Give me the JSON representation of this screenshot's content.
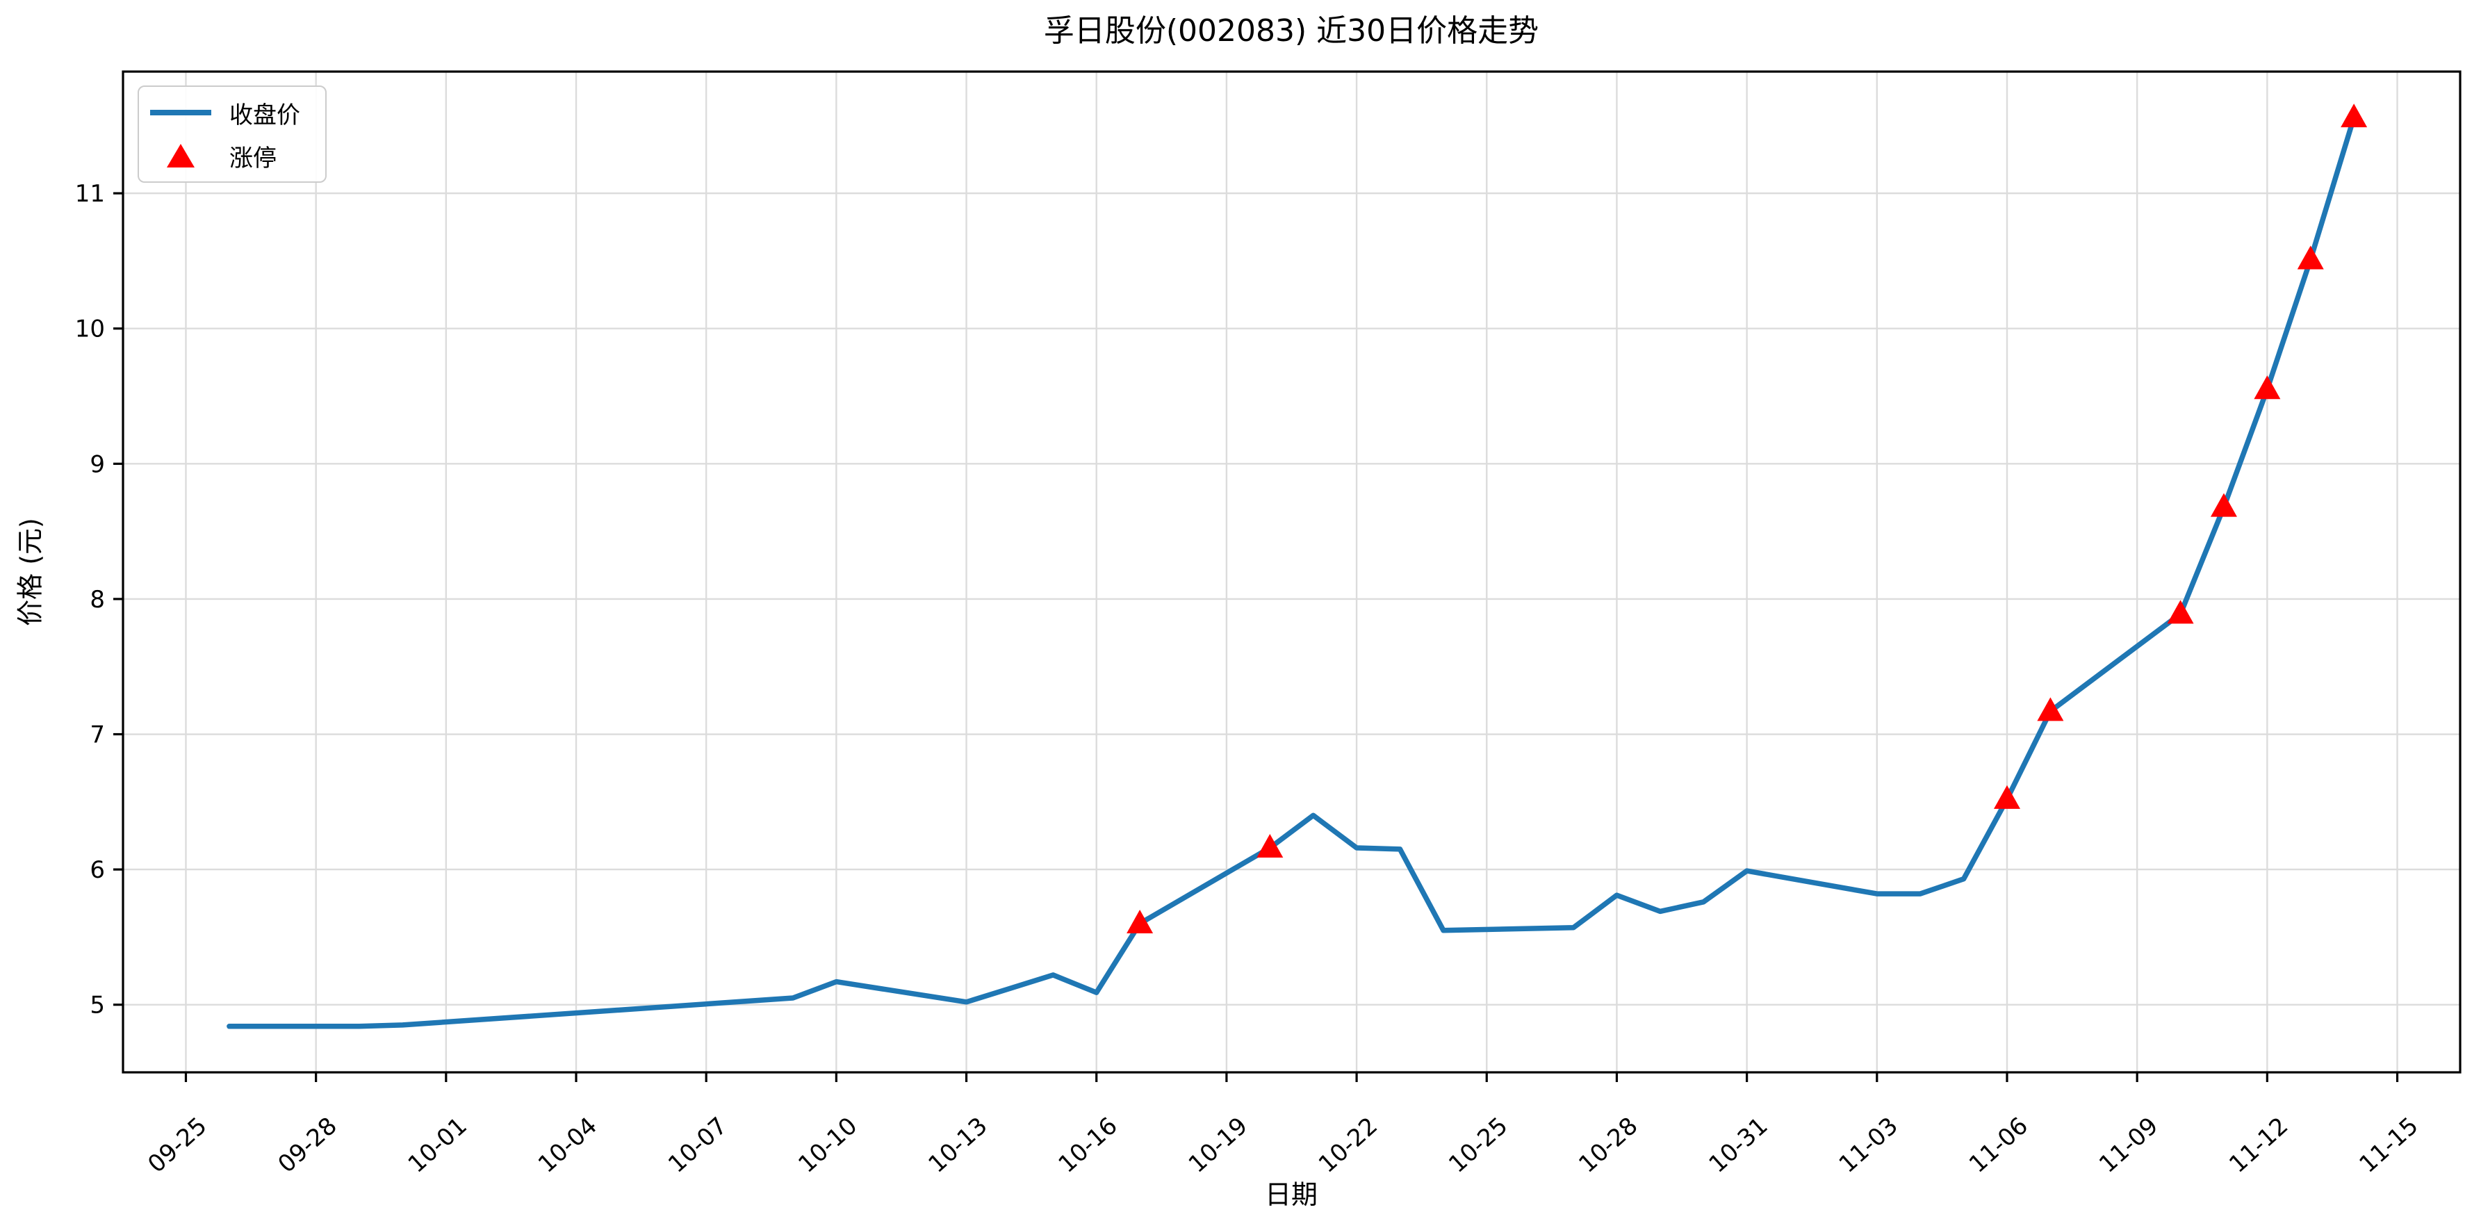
{
  "chart_data": {
    "type": "line",
    "title": "孚日股份(002083) 近30日价格走势",
    "xlabel": "日期",
    "ylabel": "价格 (元)",
    "x": [
      "09-26",
      "09-29",
      "09-30",
      "10-09",
      "10-10",
      "10-13",
      "10-14",
      "10-15",
      "10-16",
      "10-17",
      "10-20",
      "10-21",
      "10-22",
      "10-23",
      "10-24",
      "10-27",
      "10-28",
      "10-29",
      "10-30",
      "10-31",
      "11-03",
      "11-04",
      "11-05",
      "11-06",
      "11-07",
      "11-10",
      "11-11",
      "11-12",
      "11-13",
      "11-14"
    ],
    "series": [
      {
        "name": "收盘价",
        "type": "line",
        "color": "#1f77b4",
        "values": [
          4.84,
          4.84,
          4.85,
          5.05,
          5.17,
          5.02,
          5.12,
          5.22,
          5.09,
          5.6,
          6.16,
          6.4,
          6.16,
          6.15,
          5.55,
          5.57,
          5.81,
          5.69,
          5.76,
          5.99,
          5.82,
          5.82,
          5.93,
          6.52,
          7.17,
          7.89,
          8.68,
          9.55,
          10.51,
          11.56
        ]
      },
      {
        "name": "涨停",
        "type": "scatter",
        "marker": "triangle-up",
        "color": "#ff0000",
        "dates": [
          "10-17",
          "10-20",
          "11-06",
          "11-07",
          "11-10",
          "11-11",
          "11-12",
          "11-13",
          "11-14"
        ],
        "values": [
          5.6,
          6.16,
          6.52,
          7.17,
          7.89,
          8.68,
          9.55,
          10.51,
          11.56
        ]
      }
    ],
    "x_ticks": [
      "09-25",
      "09-28",
      "10-01",
      "10-04",
      "10-07",
      "10-10",
      "10-13",
      "10-16",
      "10-19",
      "10-22",
      "10-25",
      "10-28",
      "10-31",
      "11-03",
      "11-06",
      "11-09",
      "11-12",
      "11-15"
    ],
    "y_ticks": [
      5,
      6,
      7,
      8,
      9,
      10,
      11
    ],
    "ylim": [
      4.5,
      11.9
    ],
    "grid": true,
    "grid_color": "#dcdcdc",
    "axis_color": "#000000",
    "legend_position": "upper left"
  }
}
